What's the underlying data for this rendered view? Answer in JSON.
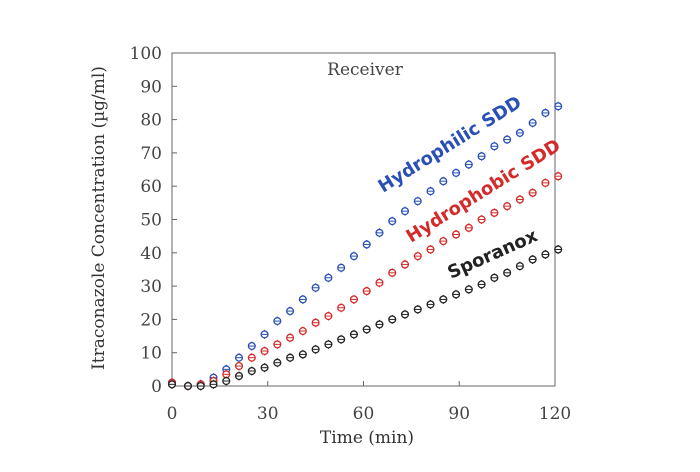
{
  "chart_data": {
    "type": "scatter",
    "title": "Receiver",
    "xlabel": "Time (min)",
    "ylabel": "Itraconazole Concentration (µg/ml)",
    "xlim": [
      0,
      120
    ],
    "ylim": [
      0,
      100
    ],
    "xticks": [
      0,
      30,
      60,
      90,
      120
    ],
    "yticks": [
      0,
      10,
      20,
      30,
      40,
      50,
      60,
      70,
      80,
      90,
      100
    ],
    "grid": false,
    "legend": "inline-labels",
    "series": [
      {
        "name": "Hydrophilic SDD",
        "color": "#2a4fb5",
        "x": [
          0,
          5,
          9,
          13,
          17,
          21,
          25,
          29,
          33,
          37,
          41,
          45,
          49,
          53,
          57,
          61,
          65,
          69,
          73,
          77,
          81,
          85,
          89,
          93,
          97,
          101,
          105,
          109,
          113,
          117,
          121
        ],
        "y": [
          1,
          0,
          0.5,
          2.5,
          5,
          8.5,
          12,
          15.5,
          19.5,
          22.5,
          26,
          29.5,
          32.5,
          35.5,
          39,
          42.5,
          46,
          49.5,
          52.5,
          55.5,
          58.5,
          61.5,
          64,
          66.5,
          69,
          72,
          74,
          76,
          79,
          82,
          84
        ]
      },
      {
        "name": "Hydrophobic SDD",
        "color": "#d42a2a",
        "x": [
          0,
          5,
          9,
          13,
          17,
          21,
          25,
          29,
          33,
          37,
          41,
          45,
          49,
          53,
          57,
          61,
          65,
          69,
          73,
          77,
          81,
          85,
          89,
          93,
          97,
          101,
          105,
          109,
          113,
          117,
          121
        ],
        "y": [
          1,
          0,
          0.5,
          1.5,
          3.5,
          6,
          8.5,
          10.5,
          12.5,
          14.5,
          16.5,
          19,
          21,
          23.5,
          26,
          28.5,
          31,
          34,
          36.5,
          39,
          41,
          43.5,
          45.5,
          47.5,
          50,
          52,
          54,
          56,
          58,
          61,
          63
        ]
      },
      {
        "name": "Sporanox",
        "color": "#222222",
        "x": [
          0,
          5,
          9,
          13,
          17,
          21,
          25,
          29,
          33,
          37,
          41,
          45,
          49,
          53,
          57,
          61,
          65,
          69,
          73,
          77,
          81,
          85,
          89,
          93,
          97,
          101,
          105,
          109,
          113,
          117,
          121
        ],
        "y": [
          0.5,
          0,
          0,
          0.5,
          1.5,
          3,
          4.5,
          5.5,
          7,
          8.5,
          9.5,
          11,
          12.5,
          14,
          15.5,
          17,
          18.5,
          20,
          21.5,
          23,
          24.5,
          26,
          27.5,
          29,
          30.5,
          32.5,
          34,
          36,
          38,
          39.5,
          41
        ]
      }
    ]
  }
}
